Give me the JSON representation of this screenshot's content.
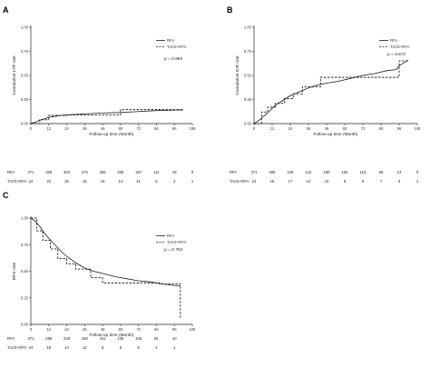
{
  "chart_data": [
    {
      "type": "line",
      "panel_label": "A",
      "ylabel": "Cumulative LTP rate",
      "xlabel": "Follow-up time (Month)",
      "xlim": [
        0,
        108
      ],
      "ylim": [
        0,
        1
      ],
      "x_ticks": [
        "0",
        "12",
        "24",
        "36",
        "48",
        "60",
        "72",
        "84",
        "96",
        "108"
      ],
      "y_ticks": [
        "0.00",
        "0.25",
        "0.50",
        "0.75",
        "1.00"
      ],
      "legend_position": "top-right",
      "p_value": "p = 0.965",
      "series": [
        {
          "name": "RFA",
          "dash": "solid",
          "points": [
            [
              0,
              0
            ],
            [
              2,
              0.01
            ],
            [
              4,
              0.02
            ],
            [
              6,
              0.035
            ],
            [
              9,
              0.05
            ],
            [
              12,
              0.065
            ],
            [
              16,
              0.075
            ],
            [
              20,
              0.085
            ],
            [
              24,
              0.09
            ],
            [
              30,
              0.095
            ],
            [
              36,
              0.1
            ],
            [
              48,
              0.11
            ],
            [
              60,
              0.115
            ],
            [
              72,
              0.125
            ],
            [
              84,
              0.135
            ],
            [
              96,
              0.14
            ],
            [
              102,
              0.14
            ]
          ]
        },
        {
          "name": "TACE+RFA",
          "dash": "dashed",
          "points": [
            [
              0,
              0
            ],
            [
              6,
              0
            ],
            [
              6,
              0.04
            ],
            [
              12,
              0.04
            ],
            [
              12,
              0.085
            ],
            [
              24,
              0.085
            ],
            [
              24,
              0.09
            ],
            [
              60,
              0.09
            ],
            [
              60,
              0.145
            ],
            [
              102,
              0.145
            ]
          ]
        }
      ],
      "risk_table": {
        "times": [
          "0",
          "12",
          "24",
          "36",
          "48",
          "60",
          "72",
          "84",
          "96",
          "108"
        ],
        "rows": [
          {
            "label": "RFA",
            "values": [
              "371",
              "329",
              "304",
              "276",
              "255",
              "208",
              "167",
              "111",
              "19",
              "0"
            ]
          },
          {
            "label": "TACE+RFA",
            "values": [
              "24",
              "22",
              "20",
              "16",
              "16",
              "14",
              "11",
              "8",
              "3",
              "1"
            ]
          }
        ]
      }
    },
    {
      "type": "line",
      "panel_label": "B",
      "ylabel": "Cumulative ICR rate",
      "xlabel": "Follow-up time (Month)",
      "xlim": [
        0,
        108
      ],
      "ylim": [
        0,
        1
      ],
      "x_ticks": [
        "0",
        "12",
        "24",
        "36",
        "48",
        "60",
        "72",
        "84",
        "96",
        "108"
      ],
      "y_ticks": [
        "0.00",
        "0.25",
        "0.50",
        "0.75",
        "1.00"
      ],
      "legend_position": "top-right",
      "p_value": "p = 0.672",
      "series": [
        {
          "name": "RFA",
          "dash": "solid",
          "points": [
            [
              0,
              0
            ],
            [
              3,
              0.03
            ],
            [
              6,
              0.07
            ],
            [
              9,
              0.11
            ],
            [
              12,
              0.16
            ],
            [
              16,
              0.21
            ],
            [
              20,
              0.25
            ],
            [
              24,
              0.29
            ],
            [
              30,
              0.33
            ],
            [
              36,
              0.37
            ],
            [
              42,
              0.4
            ],
            [
              48,
              0.42
            ],
            [
              56,
              0.44
            ],
            [
              64,
              0.47
            ],
            [
              72,
              0.5
            ],
            [
              80,
              0.52
            ],
            [
              88,
              0.55
            ],
            [
              94,
              0.56
            ],
            [
              96,
              0.6
            ],
            [
              102,
              0.66
            ]
          ]
        },
        {
          "name": "TACE+RFA",
          "dash": "dashed",
          "points": [
            [
              0,
              0
            ],
            [
              5,
              0
            ],
            [
              5,
              0.12
            ],
            [
              9,
              0.12
            ],
            [
              9,
              0.17
            ],
            [
              14,
              0.17
            ],
            [
              14,
              0.21
            ],
            [
              20,
              0.21
            ],
            [
              20,
              0.26
            ],
            [
              26,
              0.26
            ],
            [
              26,
              0.31
            ],
            [
              32,
              0.31
            ],
            [
              32,
              0.38
            ],
            [
              44,
              0.38
            ],
            [
              44,
              0.48
            ],
            [
              96,
              0.48
            ],
            [
              96,
              0.65
            ],
            [
              102,
              0.65
            ]
          ]
        }
      ],
      "risk_table": {
        "times": [
          "0",
          "12",
          "24",
          "36",
          "48",
          "60",
          "72",
          "84",
          "96",
          "108"
        ],
        "rows": [
          {
            "label": "RFA",
            "values": [
              "371",
              "306",
              "246",
              "212",
              "180",
              "164",
              "116",
              "68",
              "13",
              "0"
            ]
          },
          {
            "label": "TACE+RFA",
            "values": [
              "24",
              "18",
              "17",
              "14",
              "10",
              "9",
              "9",
              "7",
              "3",
              "1"
            ]
          }
        ]
      }
    },
    {
      "type": "line",
      "panel_label": "C",
      "ylabel": "RFS rate",
      "xlabel": "Follow-up time (Month)",
      "xlim": [
        0,
        108
      ],
      "ylim": [
        0,
        1
      ],
      "x_ticks": [
        "0",
        "12",
        "24",
        "36",
        "48",
        "60",
        "72",
        "84",
        "96",
        "108"
      ],
      "y_ticks": [
        "0.00",
        "0.25",
        "0.50",
        "0.75",
        "1.00"
      ],
      "legend_position": "top-right",
      "p_value": "p = 0.753",
      "series": [
        {
          "name": "RFA",
          "dash": "solid",
          "points": [
            [
              0,
              1
            ],
            [
              3,
              0.97
            ],
            [
              6,
              0.92
            ],
            [
              9,
              0.86
            ],
            [
              12,
              0.81
            ],
            [
              16,
              0.75
            ],
            [
              20,
              0.69
            ],
            [
              24,
              0.64
            ],
            [
              30,
              0.58
            ],
            [
              36,
              0.53
            ],
            [
              42,
              0.5
            ],
            [
              48,
              0.48
            ],
            [
              56,
              0.45
            ],
            [
              64,
              0.43
            ],
            [
              72,
              0.41
            ],
            [
              80,
              0.4
            ],
            [
              88,
              0.38
            ],
            [
              94,
              0.37
            ],
            [
              100,
              0.36
            ]
          ]
        },
        {
          "name": "TACE+RFA",
          "dash": "dashed",
          "points": [
            [
              0,
              1
            ],
            [
              4,
              1
            ],
            [
              4,
              0.88
            ],
            [
              8,
              0.88
            ],
            [
              8,
              0.79
            ],
            [
              13,
              0.79
            ],
            [
              13,
              0.71
            ],
            [
              18,
              0.71
            ],
            [
              18,
              0.62
            ],
            [
              24,
              0.62
            ],
            [
              24,
              0.57
            ],
            [
              30,
              0.57
            ],
            [
              30,
              0.52
            ],
            [
              40,
              0.52
            ],
            [
              40,
              0.44
            ],
            [
              48,
              0.44
            ],
            [
              48,
              0.39
            ],
            [
              86,
              0.39
            ],
            [
              86,
              0.38
            ],
            [
              100,
              0.38
            ],
            [
              100,
              0.05
            ]
          ]
        }
      ],
      "risk_table": {
        "times": [
          "0",
          "12",
          "24",
          "36",
          "48",
          "60",
          "72",
          "84",
          "96",
          "108"
        ],
        "rows": [
          {
            "label": "RFA",
            "values": [
              "371",
              "298",
              "229",
              "193",
              "161",
              "139",
              "105",
              "61",
              "10",
              ""
            ]
          },
          {
            "label": "TACE+RFA",
            "values": [
              "24",
              "18",
              "14",
              "12",
              "8",
              "6",
              "6",
              "4",
              "1",
              ""
            ]
          }
        ]
      }
    }
  ]
}
